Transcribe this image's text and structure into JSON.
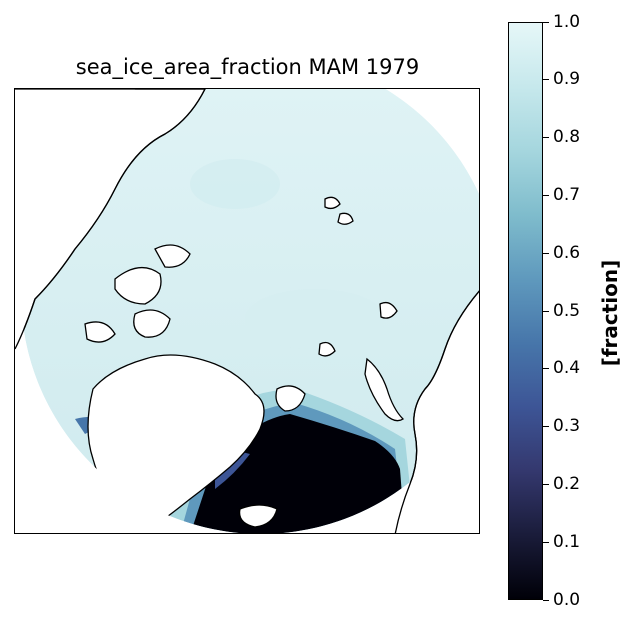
{
  "title": "sea_ice_area_fraction MAM 1979",
  "colorbar": {
    "label": "[fraction]",
    "ticks": [
      "0.0",
      "0.1",
      "0.2",
      "0.3",
      "0.4",
      "0.5",
      "0.6",
      "0.7",
      "0.8",
      "0.9",
      "1.0"
    ],
    "range": [
      0.0,
      1.0
    ],
    "colormap": [
      "#000008",
      "#1a1c3a",
      "#34386e",
      "#3d5596",
      "#4776aa",
      "#5f99bd",
      "#7fbccc",
      "#a5d6de",
      "#c6e8ec",
      "#e6f7f8"
    ]
  },
  "map": {
    "projection": "north-polar-stereographic",
    "variable": "sea_ice_area_fraction",
    "season": "MAM",
    "year": 1979,
    "ocean_no_ice_color": "#000008",
    "high_ice_color": "#dff3f5"
  }
}
